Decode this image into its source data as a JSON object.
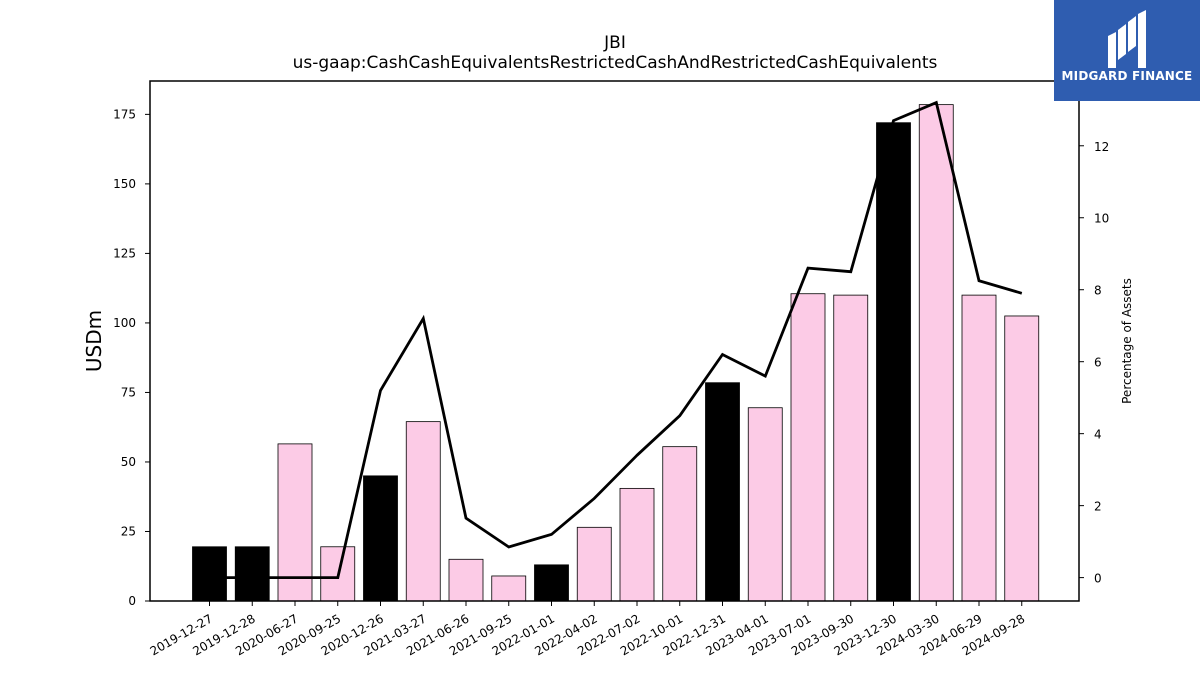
{
  "logo": {
    "text": "MIDGARD FINANCE",
    "background": "#2f5db0"
  },
  "chart_data": {
    "type": "bar+line",
    "title": "JBI",
    "subtitle": "us-gaap:CashCashEquivalentsRestrictedCashAndRestrictedCashEquivalents",
    "ylabel_left": "USDm",
    "ylabel_right": "Percentage of Assets",
    "ylim_left": [
      0,
      187
    ],
    "ylim_right": [
      -0.65,
      13.8
    ],
    "yticks_left": [
      0,
      25,
      50,
      75,
      100,
      125,
      150,
      175
    ],
    "yticks_right": [
      0,
      2,
      4,
      6,
      8,
      10,
      12
    ],
    "categories": [
      "2019-12-27",
      "2019-12-28",
      "2020-06-27",
      "2020-09-25",
      "2020-12-26",
      "2021-03-27",
      "2021-06-26",
      "2021-09-25",
      "2022-01-01",
      "2022-04-02",
      "2022-07-02",
      "2022-10-01",
      "2022-12-31",
      "2023-04-01",
      "2023-07-01",
      "2023-09-30",
      "2023-12-30",
      "2024-03-30",
      "2024-06-29",
      "2024-09-28"
    ],
    "series": [
      {
        "kind": "bar",
        "values": [
          19.5,
          19.5,
          56.5,
          19.5,
          45.0,
          64.5,
          15.0,
          9.0,
          13.0,
          26.5,
          40.5,
          55.5,
          78.5,
          69.5,
          110.5,
          110.0,
          172.0,
          178.5,
          110.0,
          102.5
        ],
        "bar_colors": [
          "#000000",
          "#000000",
          "#fccbe6",
          "#fccbe6",
          "#000000",
          "#fccbe6",
          "#fccbe6",
          "#fccbe6",
          "#000000",
          "#fccbe6",
          "#fccbe6",
          "#fccbe6",
          "#000000",
          "#fccbe6",
          "#fccbe6",
          "#fccbe6",
          "#000000",
          "#fccbe6",
          "#fccbe6",
          "#fccbe6"
        ]
      },
      {
        "kind": "line",
        "axis": "right",
        "values": [
          0.0,
          0.0,
          0.0,
          0.0,
          5.2,
          7.2,
          1.65,
          0.85,
          1.2,
          2.2,
          3.4,
          4.5,
          6.2,
          5.6,
          8.6,
          8.5,
          12.7,
          13.2,
          8.25,
          7.9
        ],
        "color": "#000000"
      }
    ],
    "grid": false,
    "legend": "none"
  }
}
